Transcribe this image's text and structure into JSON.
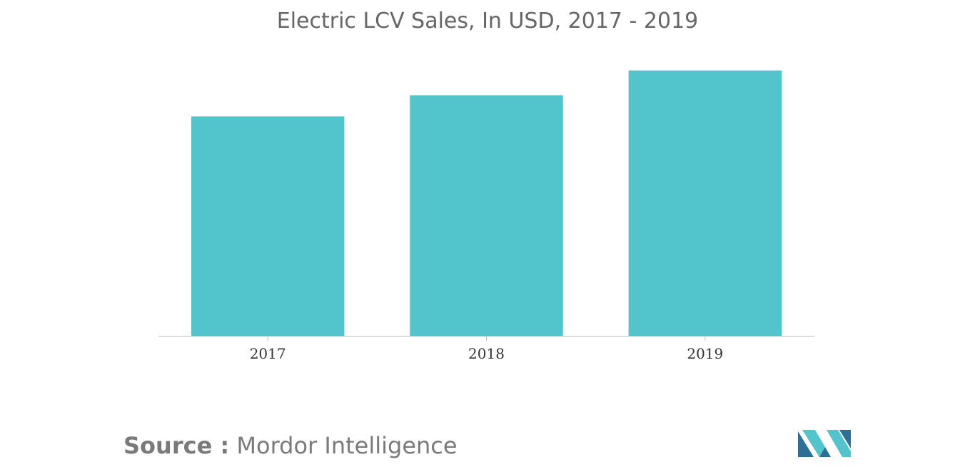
{
  "chart_data": {
    "type": "bar",
    "title": "Electric LCV Sales, In USD, 2017 - 2019",
    "categories": [
      "2017",
      "2018",
      "2019"
    ],
    "values": [
      62,
      68,
      75
    ],
    "xlabel": "",
    "ylabel": "",
    "ylim": [
      0,
      80
    ],
    "grid": false,
    "legend": "none",
    "bar_color": "#52c4cb",
    "axis_color": "#bfbfbf",
    "tick_label_color": "#333333"
  },
  "footer": {
    "source_label": "Source :",
    "source_name": "Mordor Intelligence",
    "logo_icon": "mordor-intelligence-logo-icon",
    "logo_colors": [
      "#2f6f96",
      "#52c4cb"
    ]
  }
}
